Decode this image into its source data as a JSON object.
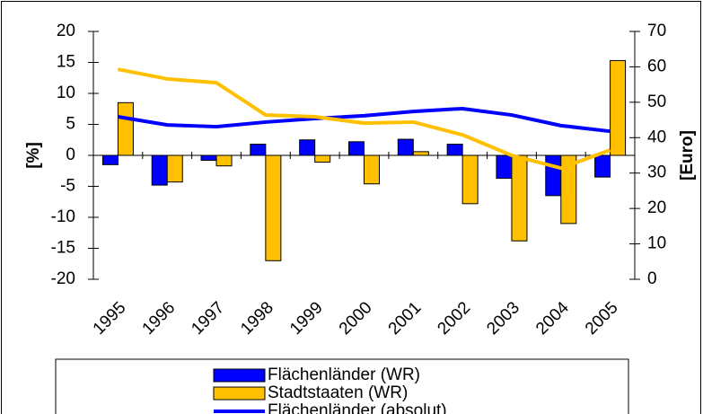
{
  "chart_data": {
    "type": "bar",
    "y_label": "[%]",
    "y2_label": "[Euro]",
    "categories": [
      "1995",
      "1996",
      "1997",
      "1998",
      "1999",
      "2000",
      "2001",
      "2002",
      "2003",
      "2004",
      "2005"
    ],
    "ylim": [
      -20,
      20
    ],
    "yticks": [
      -20,
      -15,
      -10,
      -5,
      0,
      5,
      10,
      15,
      20
    ],
    "y2lim": [
      0,
      70
    ],
    "y2ticks": [
      0,
      10,
      20,
      30,
      40,
      50,
      60,
      70
    ],
    "series": [
      {
        "name": "Flächenländer (WR)",
        "type": "bar",
        "color": "#0000ff",
        "values": [
          -1.5,
          -4.8,
          -0.8,
          1.8,
          2.5,
          2.2,
          2.6,
          1.8,
          -3.7,
          -6.5,
          -3.5
        ]
      },
      {
        "name": "Stadtstaaten (WR)",
        "type": "bar",
        "color": "#ffc000",
        "values": [
          8.5,
          -4.3,
          -1.7,
          -17,
          -1.1,
          -4.6,
          0.6,
          -7.8,
          -13.8,
          -11,
          15.3
        ]
      },
      {
        "name": "Flächenländer (absolut)",
        "type": "line",
        "axis": "y2",
        "color": "#0000ff",
        "values": [
          45.9,
          43.6,
          43.1,
          44.4,
          45.4,
          46.2,
          47.4,
          48.2,
          46.4,
          43.4,
          41.8
        ]
      },
      {
        "type": "line",
        "axis": "y2",
        "color": "#ffc000",
        "values": [
          59.3,
          56.6,
          55.5,
          46.4,
          45.9,
          44.1,
          44.4,
          40.8,
          35,
          31.4,
          36.5
        ]
      }
    ]
  }
}
